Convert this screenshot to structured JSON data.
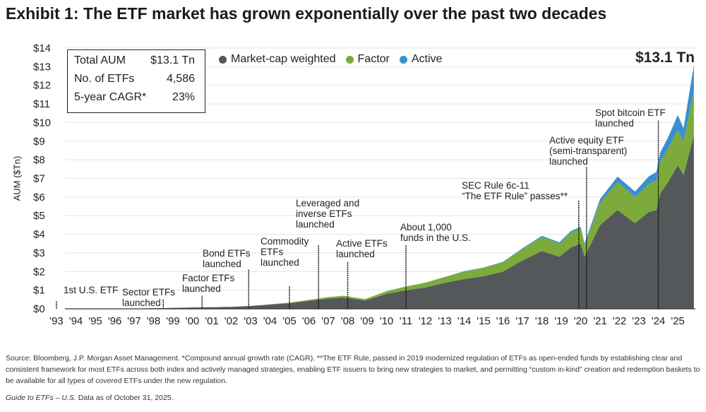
{
  "title": "Exhibit 1: The ETF market has grown exponentially over the past two decades",
  "stats": [
    {
      "label": "Total AUM",
      "value": "$13.1 Tn"
    },
    {
      "label": "No. of ETFs",
      "value": "4,586"
    },
    {
      "label": "5-year CAGR*",
      "value": "23%"
    }
  ],
  "total_label": "$13.1 Tn",
  "footnote": "Source: Bloomberg, J.P. Morgan Asset Management. *Compound annual growth rate (CAGR). **The ETF Rule, passed in 2019 modernized regulation of ETFs as open-ended funds by establishing clear and consistent framework for most ETFs across both index and actively managed strategies, enabling ETF issuers to bring new strategies to market, and permitting “custom in-kind” creation and redemption baskets to be available for all types of covered ETFs under the new regulation.",
  "guide": "Guide to ETFs – U.S.",
  "data_as_of": " Data as of October 31, 2025.",
  "chart_data": {
    "type": "area",
    "stacked": true,
    "ylabel": "AUM ($Tn)",
    "ylim": [
      0,
      14
    ],
    "yticks": [
      "$0",
      "$1",
      "$2",
      "$3",
      "$4",
      "$5",
      "$6",
      "$7",
      "$8",
      "$9",
      "$10",
      "$11",
      "$12",
      "$13",
      "$14"
    ],
    "xticks": [
      "'93",
      "'94",
      "'95",
      "'96",
      "'97",
      "'98",
      "'99",
      "'00",
      "'01",
      "'02",
      "'03",
      "'04",
      "'05",
      "'06",
      "'07",
      "'08",
      "'09",
      "'10",
      "'11",
      "'12",
      "'13",
      "'14",
      "'15",
      "'16",
      "'17",
      "'18",
      "'19",
      "'20",
      "'21",
      "'22",
      "'23",
      "'24",
      "'25"
    ],
    "grid": true,
    "legend_position": "top",
    "x": [
      1993,
      1997,
      2000,
      2002,
      2003,
      2005,
      2007,
      2007.8,
      2008.9,
      2010,
      2011,
      2012,
      2013,
      2014,
      2015,
      2016,
      2017,
      2018,
      2018.9,
      2019.5,
      2020.0,
      2020.2,
      2021,
      2021.9,
      2022.8,
      2023.5,
      2023.9,
      2024.1,
      2024.5,
      2025.0,
      2025.3,
      2025.83
    ],
    "series": [
      {
        "name": "Market-cap weighted",
        "color": "#55585b",
        "values": [
          0,
          0.01,
          0.07,
          0.1,
          0.15,
          0.3,
          0.55,
          0.6,
          0.45,
          0.8,
          1.0,
          1.15,
          1.4,
          1.6,
          1.75,
          2.0,
          2.6,
          3.1,
          2.8,
          3.3,
          3.5,
          2.8,
          4.5,
          5.3,
          4.6,
          5.2,
          5.3,
          6.2,
          6.8,
          7.7,
          7.2,
          9.3
        ]
      },
      {
        "name": "Factor",
        "color": "#7cab3c",
        "values": [
          0,
          0,
          0,
          0.01,
          0.01,
          0.03,
          0.08,
          0.1,
          0.07,
          0.15,
          0.2,
          0.25,
          0.3,
          0.4,
          0.45,
          0.5,
          0.6,
          0.75,
          0.7,
          0.8,
          0.8,
          0.6,
          1.2,
          1.5,
          1.4,
          1.5,
          1.6,
          1.7,
          1.8,
          1.9,
          1.8,
          2.4
        ]
      },
      {
        "name": "Active",
        "color": "#3a8fd0",
        "values": [
          0,
          0,
          0,
          0,
          0,
          0,
          0,
          0,
          0,
          0,
          0,
          0.01,
          0.01,
          0.02,
          0.02,
          0.03,
          0.05,
          0.07,
          0.07,
          0.08,
          0.1,
          0.1,
          0.2,
          0.3,
          0.3,
          0.4,
          0.45,
          0.5,
          0.6,
          0.8,
          0.7,
          1.4
        ]
      }
    ],
    "annotations": [
      {
        "x": 1993,
        "text": "1st U.S. ETF"
      },
      {
        "x": 1998.5,
        "text": "Sector ETFs\nlaunched"
      },
      {
        "x": 2000.5,
        "text": "Factor ETFs\nlaunched"
      },
      {
        "x": 2002.9,
        "text": "Bond ETFs\nlaunched"
      },
      {
        "x": 2005,
        "text": "Commodity\nETFs\nlaunched"
      },
      {
        "x": 2006.5,
        "text": "Leveraged and\ninverse ETFs\nlaunched"
      },
      {
        "x": 2008,
        "text": "Active ETFs\nlaunched"
      },
      {
        "x": 2011,
        "text": "About 1,000\nfunds in the U.S."
      },
      {
        "x": 2019.9,
        "text": "SEC Rule 6c-11\n“The ETF Rule” passes**"
      },
      {
        "x": 2020.3,
        "text": "Active equity ETF\n(semi-transparent)\nlaunched"
      },
      {
        "x": 2024,
        "text": "Spot bitcoin ETF\nlaunched"
      }
    ]
  }
}
